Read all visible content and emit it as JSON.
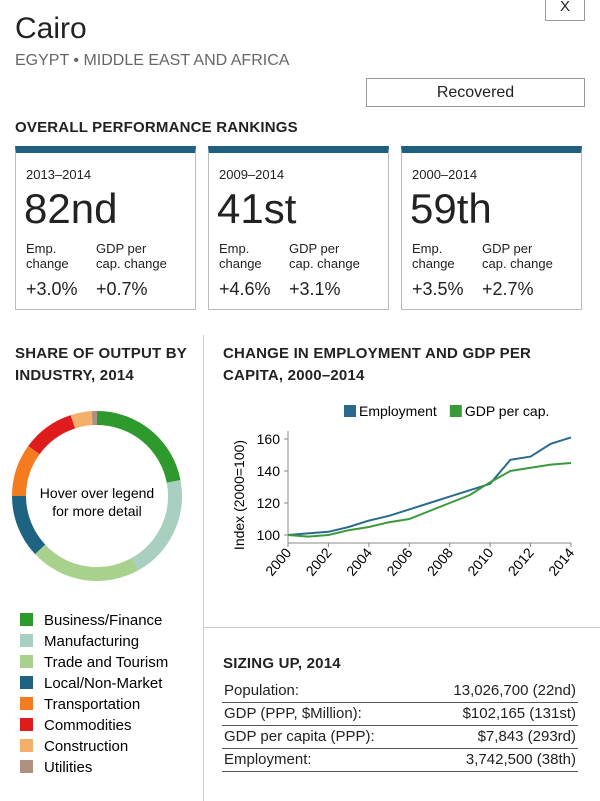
{
  "header": {
    "title": "Cairo",
    "subtitle": "EGYPT • MIDDLE EAST AND AFRICA",
    "close": "X",
    "status": "Recovered"
  },
  "rankings": {
    "title": "OVERALL PERFORMANCE RANKINGS",
    "cards": [
      {
        "period": "2013–2014",
        "rank": "82nd",
        "emp_label": "Emp. change",
        "gdp_label": "GDP per cap. change",
        "emp": "+3.0%",
        "gdp": "+0.7%"
      },
      {
        "period": "2009–2014",
        "rank": "41st",
        "emp_label": "Emp. change",
        "gdp_label": "GDP per cap. change",
        "emp": "+4.6%",
        "gdp": "+3.1%"
      },
      {
        "period": "2000–2014",
        "rank": "59th",
        "emp_label": "Emp. change",
        "gdp_label": "GDP per cap. change",
        "emp": "+3.5%",
        "gdp": "+2.7%"
      }
    ]
  },
  "chart_data": [
    {
      "type": "pie",
      "title": "SHARE OF OUTPUT BY INDUSTRY, 2014",
      "center_label": "Hover over legend for more detail",
      "categories": [
        "Business/Finance",
        "Manufacturing",
        "Trade and Tourism",
        "Local/Non-Market",
        "Transportation",
        "Commodities",
        "Construction",
        "Utilities"
      ],
      "values": [
        22,
        20,
        21,
        12,
        10,
        10,
        4,
        1
      ],
      "colors": [
        "#2e9a2e",
        "#a8cfc0",
        "#a9d18e",
        "#1f6383",
        "#f47b20",
        "#e01b1b",
        "#f4b06b",
        "#b09080"
      ]
    },
    {
      "type": "line",
      "title": "CHANGE IN EMPLOYMENT AND GDP PER CAPITA, 2000–2014",
      "ylabel": "Index (2000=100)",
      "x": [
        2000,
        2001,
        2002,
        2003,
        2004,
        2005,
        2006,
        2007,
        2008,
        2009,
        2010,
        2011,
        2012,
        2013,
        2014
      ],
      "series": [
        {
          "name": "Employment",
          "color": "#2a6a8e",
          "values": [
            100,
            101,
            102,
            105,
            109,
            112,
            116,
            120,
            124,
            128,
            132,
            147,
            149,
            157,
            161
          ]
        },
        {
          "name": "GDP per cap.",
          "color": "#3a9a3a",
          "values": [
            100,
            99,
            100,
            103,
            105,
            108,
            110,
            115,
            120,
            125,
            133,
            140,
            142,
            144,
            145
          ]
        }
      ],
      "xlim": [
        2000,
        2014
      ],
      "ylim": [
        95,
        165
      ],
      "xticks": [
        2000,
        2002,
        2004,
        2006,
        2008,
        2010,
        2012,
        2014
      ],
      "yticks": [
        100,
        120,
        140,
        160
      ]
    }
  ],
  "sizing": {
    "title": "SIZING UP, 2014",
    "rows": [
      [
        "Population:",
        "13,026,700 (22nd)"
      ],
      [
        "GDP (PPP, $Million):",
        "$102,165 (131st)"
      ],
      [
        "GDP per capita (PPP):",
        "$7,843 (293rd)"
      ],
      [
        "Employment:",
        "3,742,500 (38th)"
      ]
    ]
  }
}
